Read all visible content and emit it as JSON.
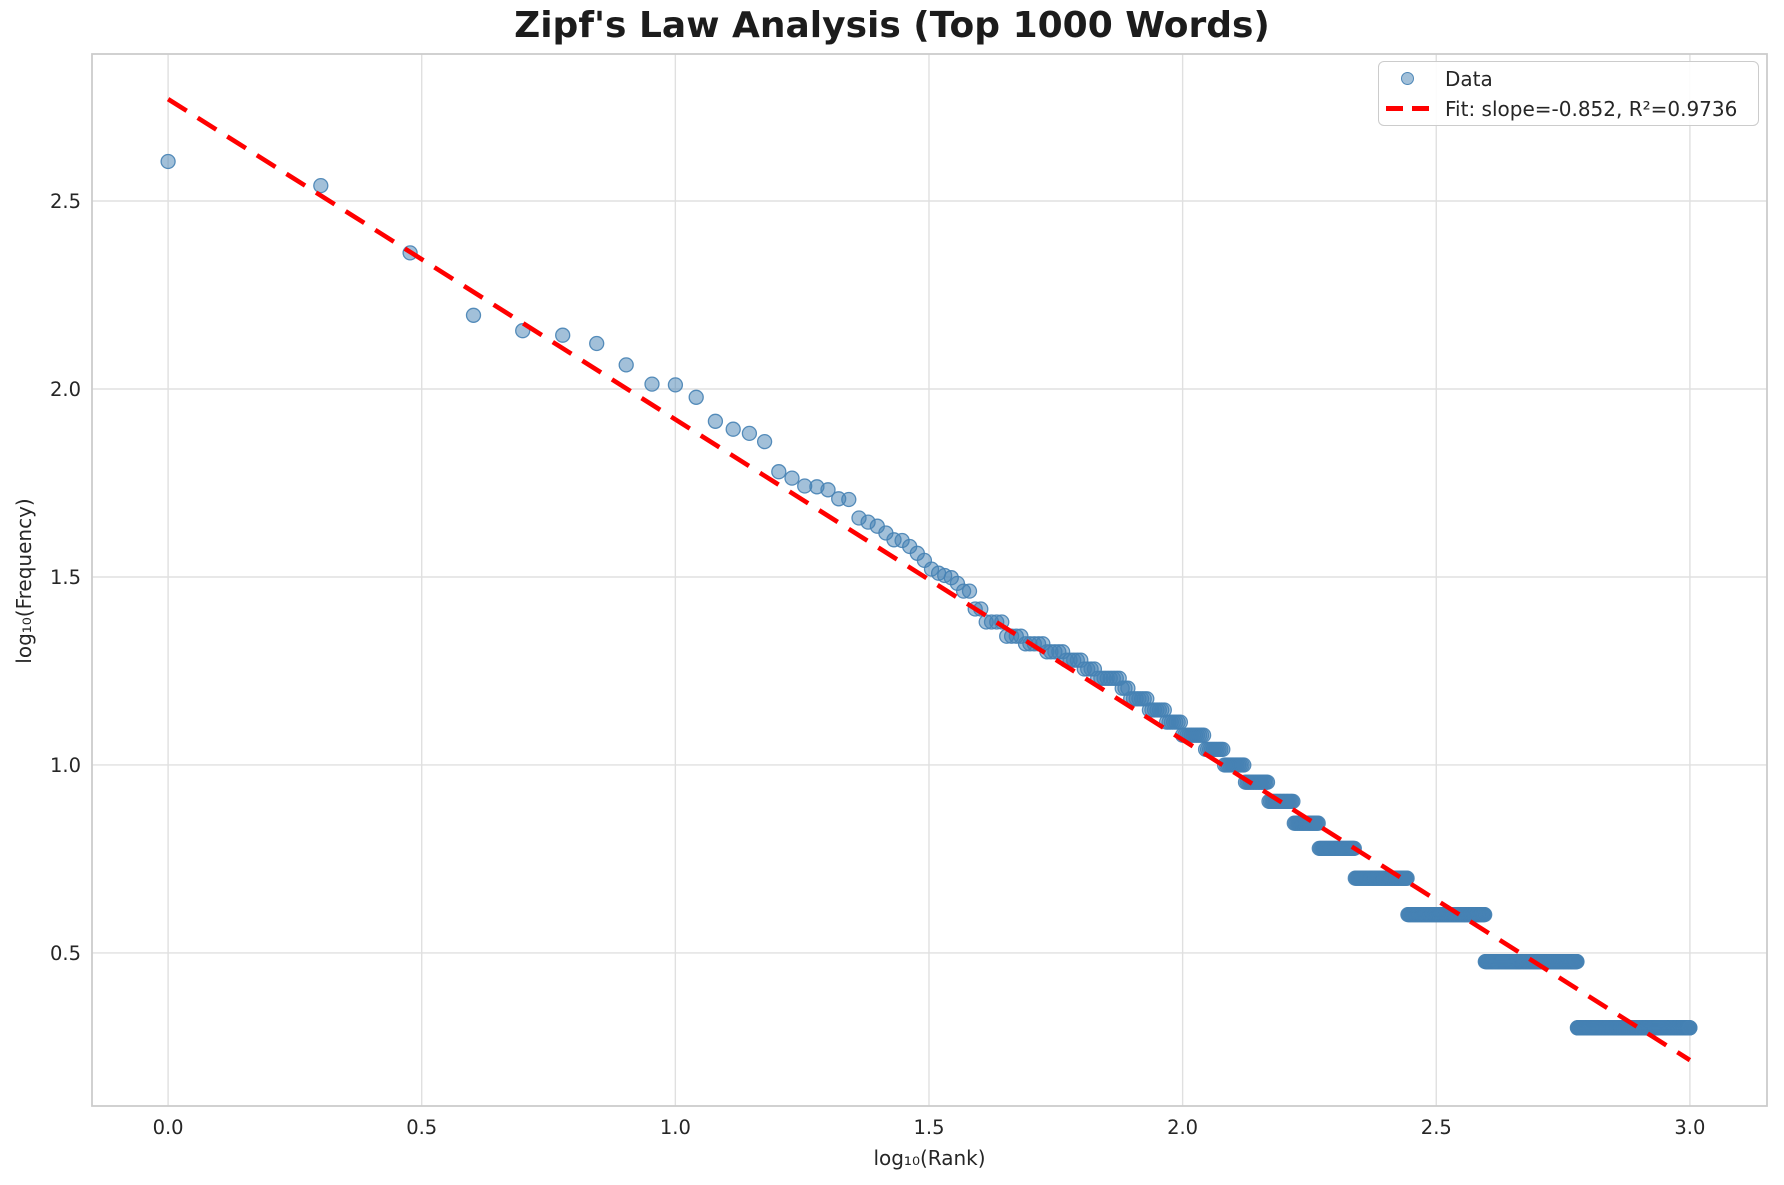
{
  "title": "Zipf's Law Analysis (Top 1000 Words)",
  "legend": {
    "data_label": "Data",
    "fit_label": "Fit: slope=-0.852, R²=0.9736"
  },
  "colors": {
    "marker_fill": "rgba(70,130,180,0.5)",
    "marker_edge": "rgba(70,130,180,0.9)",
    "fit_line": "#ff0000",
    "grid": "#e0e0e0",
    "spine": "#cccccc",
    "text": "#262626",
    "background": "#ffffff"
  },
  "chart_data": {
    "type": "scatter",
    "title": "Zipf's Law Analysis (Top 1000 Words)",
    "xlabel": "log₁₀(Rank)",
    "ylabel": "log₁₀(Frequency)",
    "xlim": [
      -0.15,
      3.152
    ],
    "ylim": [
      0.093,
      2.891
    ],
    "x_ticks": [
      0.0,
      0.5,
      1.0,
      1.5,
      2.0,
      2.5,
      3.0
    ],
    "x_tick_labels": [
      "0.0",
      "0.5",
      "1.0",
      "1.5",
      "2.0",
      "2.5",
      "3.0"
    ],
    "y_ticks": [
      0.5,
      1.0,
      1.5,
      2.0,
      2.5
    ],
    "y_tick_labels": [
      "0.5",
      "1.0",
      "1.5",
      "2.0",
      "2.5"
    ],
    "grid": true,
    "legend_position": "upper right",
    "series": [
      {
        "name": "Data",
        "kind": "scatter",
        "note": "log10(rank) vs log10(frequency) for top 1000 words; head_points are [log10_rank, log10_freq]; freq_runs are [frequency, rank_start, rank_end] plateaus of the quantized tail",
        "head_points": [
          [
            0.0,
            2.605
          ],
          [
            0.301,
            2.541
          ],
          [
            0.477,
            2.362
          ],
          [
            0.602,
            2.196
          ],
          [
            0.699,
            2.155
          ],
          [
            0.778,
            2.143
          ],
          [
            0.845,
            2.121
          ],
          [
            0.903,
            2.064
          ],
          [
            0.954,
            2.013
          ],
          [
            1.0,
            2.011
          ],
          [
            1.041,
            1.978
          ],
          [
            1.079,
            1.914
          ],
          [
            1.114,
            1.893
          ],
          [
            1.146,
            1.882
          ],
          [
            1.176,
            1.86
          ],
          [
            1.204,
            1.78
          ],
          [
            1.23,
            1.763
          ],
          [
            1.255,
            1.742
          ],
          [
            1.279,
            1.74
          ],
          [
            1.301,
            1.732
          ],
          [
            1.322,
            1.708
          ],
          [
            1.342,
            1.706
          ],
          [
            1.362,
            1.657
          ],
          [
            1.38,
            1.646
          ],
          [
            1.398,
            1.635
          ],
          [
            1.415,
            1.617
          ],
          [
            1.431,
            1.599
          ],
          [
            1.447,
            1.597
          ],
          [
            1.462,
            1.581
          ],
          [
            1.477,
            1.563
          ],
          [
            1.491,
            1.544
          ],
          [
            1.505,
            1.521
          ],
          [
            1.519,
            1.51
          ],
          [
            1.531,
            1.504
          ],
          [
            1.544,
            1.498
          ],
          [
            1.556,
            1.483
          ]
        ],
        "freq_runs": [
          [
            29,
            37,
            38
          ],
          [
            26,
            39,
            40
          ],
          [
            24,
            41,
            44
          ],
          [
            22,
            45,
            48
          ],
          [
            21,
            49,
            53
          ],
          [
            20,
            54,
            58
          ],
          [
            19,
            59,
            63
          ],
          [
            18,
            64,
            67
          ],
          [
            17,
            68,
            75
          ],
          [
            16,
            76,
            78
          ],
          [
            15,
            79,
            85
          ],
          [
            14,
            86,
            92
          ],
          [
            13,
            93,
            99
          ],
          [
            12,
            100,
            110
          ],
          [
            11,
            111,
            120
          ],
          [
            10,
            121,
            132
          ],
          [
            9,
            133,
            147
          ],
          [
            8,
            148,
            165
          ],
          [
            7,
            166,
            185
          ],
          [
            6,
            186,
            218
          ],
          [
            5,
            219,
            277
          ],
          [
            4,
            278,
            394
          ],
          [
            3,
            395,
            599
          ],
          [
            2,
            600,
            1000
          ]
        ]
      },
      {
        "name": "Fit: slope=-0.852, R²=0.9736",
        "kind": "line",
        "slope": -0.852,
        "intercept": 2.771,
        "r_squared": 0.9736,
        "x_range": [
          0.0,
          3.0
        ],
        "dashed": true
      }
    ]
  }
}
